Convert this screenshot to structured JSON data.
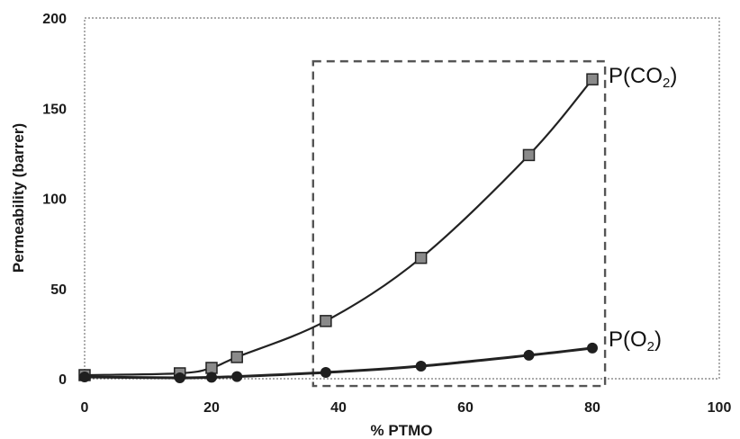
{
  "chart_data": {
    "type": "scatter",
    "xlabel": "% PTMO",
    "ylabel": "Permeability (barrer)",
    "xlim": [
      0,
      100
    ],
    "ylim": [
      0,
      200
    ],
    "x_ticks": [
      0,
      20,
      40,
      60,
      80,
      100
    ],
    "y_ticks": [
      0,
      50,
      100,
      150,
      200
    ],
    "grid": false,
    "series": [
      {
        "name_prefix": "P(CO",
        "name_sub": "2",
        "name_suffix": ")",
        "marker": "square",
        "color": "#222222",
        "x": [
          0,
          15,
          20,
          24,
          38,
          53,
          70,
          80
        ],
        "y": [
          2,
          3,
          6,
          12,
          32,
          67,
          124,
          166
        ]
      },
      {
        "name_prefix": "P(O",
        "name_sub": "2",
        "name_suffix": ")",
        "marker": "circle",
        "color": "#222222",
        "x": [
          0,
          15,
          20,
          24,
          38,
          53,
          70,
          80
        ],
        "y": [
          1,
          0.5,
          0.8,
          1.2,
          3.5,
          7,
          13,
          17
        ]
      }
    ],
    "annotation": {
      "type": "dashed-rectangle",
      "x_range": [
        36,
        82
      ],
      "y_range": [
        -4,
        176
      ]
    }
  }
}
